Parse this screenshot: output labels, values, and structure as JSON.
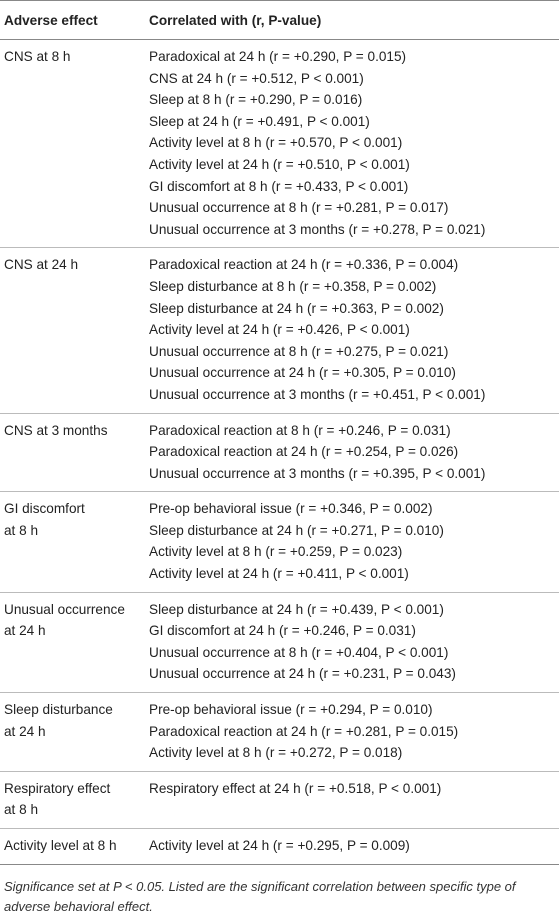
{
  "table": {
    "header": [
      "Adverse effect",
      "Correlated with (r, P-value)"
    ],
    "rows": [
      {
        "effect": "CNS at 8 h",
        "correlations": [
          "Paradoxical at 24 h (r = +0.290, P = 0.015)",
          "CNS at 24 h (r = +0.512, P < 0.001)",
          "Sleep at 8 h (r = +0.290, P = 0.016)",
          "Sleep at 24 h (r = +0.491, P < 0.001)",
          "Activity level at 8 h (r = +0.570, P < 0.001)",
          "Activity level at 24 h (r = +0.510, P < 0.001)",
          "GI discomfort at 8 h (r = +0.433, P < 0.001)",
          "Unusual occurrence at 8 h (r = +0.281, P = 0.017)",
          "Unusual occurrence at 3 months (r = +0.278, P = 0.021)"
        ]
      },
      {
        "effect": "CNS at 24 h",
        "correlations": [
          "Paradoxical reaction at 24 h (r = +0.336, P = 0.004)",
          "Sleep disturbance at 8 h (r = +0.358, P = 0.002)",
          "Sleep disturbance at 24 h (r = +0.363, P = 0.002)",
          "Activity level at 24 h (r = +0.426, P < 0.001)",
          "Unusual occurrence at 8 h (r = +0.275, P = 0.021)",
          "Unusual occurrence at 24 h (r = +0.305, P = 0.010)",
          "Unusual occurrence at 3 months (r = +0.451, P < 0.001)"
        ]
      },
      {
        "effect": "CNS at 3 months",
        "correlations": [
          "Paradoxical reaction at 8 h (r = +0.246, P = 0.031)",
          "Paradoxical reaction at 24 h (r = +0.254, P = 0.026)",
          "Unusual occurrence at 3 months (r = +0.395, P < 0.001)"
        ]
      },
      {
        "effect": "GI discomfort\nat 8 h",
        "correlations": [
          "Pre-op behavioral issue (r = +0.346, P = 0.002)",
          "Sleep disturbance at 24 h (r = +0.271, P = 0.010)",
          "Activity level at 8 h (r = +0.259, P = 0.023)",
          "Activity level at 24 h (r = +0.411, P < 0.001)"
        ]
      },
      {
        "effect": "Unusual occurrence\nat 24 h",
        "correlations": [
          "Sleep disturbance at 24 h (r = +0.439, P < 0.001)",
          "GI discomfort at 24 h (r = +0.246, P = 0.031)",
          "Unusual occurrence at 8 h (r = +0.404, P < 0.001)",
          "Unusual occurrence at 24 h (r = +0.231, P = 0.043)"
        ]
      },
      {
        "effect": "Sleep disturbance\nat 24 h",
        "correlations": [
          "Pre-op behavioral issue (r = +0.294, P = 0.010)",
          "Paradoxical reaction at 24 h (r = +0.281, P = 0.015)",
          "Activity level at 8 h (r = +0.272, P = 0.018)"
        ]
      },
      {
        "effect": "Respiratory effect\nat 8 h",
        "correlations": [
          "Respiratory effect at 24 h (r = +0.518, P < 0.001)"
        ]
      },
      {
        "effect": "Activity level at 8 h",
        "correlations": [
          "Activity level at 24 h (r = +0.295, P = 0.009)"
        ]
      }
    ],
    "footnote": "Significance set at P < 0.05. Listed are the significant correlation between specific type of adverse behavioral effect."
  }
}
